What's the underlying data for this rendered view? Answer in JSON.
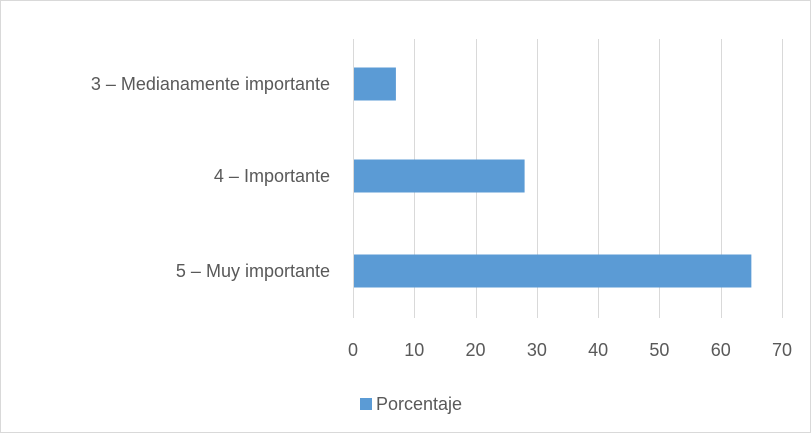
{
  "chart_data": {
    "type": "bar",
    "orientation": "horizontal",
    "categories": [
      "3 – Medianamente importante",
      "4 – Importante",
      "5 – Muy importante"
    ],
    "series": [
      {
        "name": "Porcentaje",
        "values": [
          7,
          28,
          65
        ],
        "color": "#5b9bd5"
      }
    ],
    "xlim": [
      0,
      70
    ],
    "xticks": [
      0,
      10,
      20,
      30,
      40,
      50,
      60,
      70
    ],
    "grid": "vertical",
    "legend": "bottom",
    "title": "",
    "xlabel": "",
    "ylabel": ""
  },
  "colors": {
    "bar": "#5b9bd5",
    "grid": "#d9d9d9",
    "text": "#595959",
    "border": "#d9d9d9"
  }
}
